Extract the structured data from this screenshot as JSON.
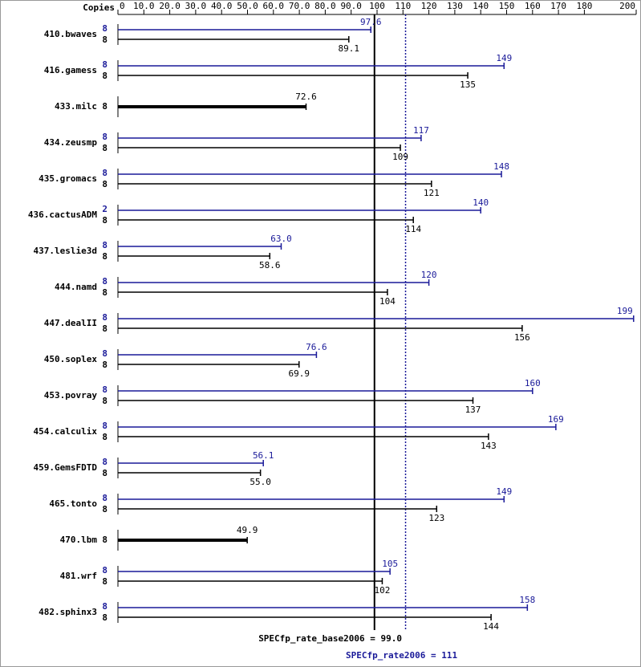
{
  "chart_data": {
    "type": "spec-bars",
    "copies_header": "Copies",
    "peak_color": "#1a1a99",
    "base_color": "#000000",
    "xlim": [
      0,
      200
    ],
    "xticks": [
      0,
      {
        "value": 10,
        "label": "10.0"
      },
      {
        "value": 20,
        "label": "20.0"
      },
      {
        "value": 30,
        "label": "30.0"
      },
      {
        "value": 40,
        "label": "40.0"
      },
      {
        "value": 50,
        "label": "50.0"
      },
      {
        "value": 60,
        "label": "60.0"
      },
      {
        "value": 70,
        "label": "70.0"
      },
      {
        "value": 80,
        "label": "80.0"
      },
      {
        "value": 90,
        "label": "90.0"
      },
      100,
      110,
      120,
      130,
      140,
      150,
      160,
      170,
      180,
      200
    ],
    "base_ref": {
      "label": "SPECfp_rate_base2006 = 99.0",
      "value": 99
    },
    "peak_ref": {
      "label": "SPECfp_rate2006 = 111",
      "value": 111
    },
    "rows": [
      {
        "name": "410.bwaves",
        "peak": {
          "copies": 8,
          "value": 97.6
        },
        "base": {
          "copies": 8,
          "value": 89.1
        }
      },
      {
        "name": "416.gamess",
        "peak": {
          "copies": 8,
          "value": 149
        },
        "base": {
          "copies": 8,
          "value": 135
        }
      },
      {
        "name": "433.milc",
        "peak": null,
        "base": {
          "copies": 8,
          "value": 72.6
        }
      },
      {
        "name": "434.zeusmp",
        "peak": {
          "copies": 8,
          "value": 117
        },
        "base": {
          "copies": 8,
          "value": 109
        }
      },
      {
        "name": "435.gromacs",
        "peak": {
          "copies": 8,
          "value": 148
        },
        "base": {
          "copies": 8,
          "value": 121
        }
      },
      {
        "name": "436.cactusADM",
        "peak": {
          "copies": 2,
          "value": 140
        },
        "base": {
          "copies": 8,
          "value": 114
        }
      },
      {
        "name": "437.leslie3d",
        "peak": {
          "copies": 8,
          "value": 63,
          "label": "63.0"
        },
        "base": {
          "copies": 8,
          "value": 58.6
        }
      },
      {
        "name": "444.namd",
        "peak": {
          "copies": 8,
          "value": 120
        },
        "base": {
          "copies": 8,
          "value": 104
        }
      },
      {
        "name": "447.dealII",
        "peak": {
          "copies": 8,
          "value": 199
        },
        "base": {
          "copies": 8,
          "value": 156
        }
      },
      {
        "name": "450.soplex",
        "peak": {
          "copies": 8,
          "value": 76.6
        },
        "base": {
          "copies": 8,
          "value": 69.9
        }
      },
      {
        "name": "453.povray",
        "peak": {
          "copies": 8,
          "value": 160
        },
        "base": {
          "copies": 8,
          "value": 137
        }
      },
      {
        "name": "454.calculix",
        "peak": {
          "copies": 8,
          "value": 169
        },
        "base": {
          "copies": 8,
          "value": 143
        }
      },
      {
        "name": "459.GemsFDTD",
        "peak": {
          "copies": 8,
          "value": 56.1
        },
        "base": {
          "copies": 8,
          "value": 55,
          "label": "55.0"
        }
      },
      {
        "name": "465.tonto",
        "peak": {
          "copies": 8,
          "value": 149
        },
        "base": {
          "copies": 8,
          "value": 123
        }
      },
      {
        "name": "470.lbm",
        "peak": null,
        "base": {
          "copies": 8,
          "value": 49.9
        }
      },
      {
        "name": "481.wrf",
        "peak": {
          "copies": 8,
          "value": 105
        },
        "base": {
          "copies": 8,
          "value": 102
        }
      },
      {
        "name": "482.sphinx3",
        "peak": {
          "copies": 8,
          "value": 158
        },
        "base": {
          "copies": 8,
          "value": 144
        }
      }
    ]
  }
}
